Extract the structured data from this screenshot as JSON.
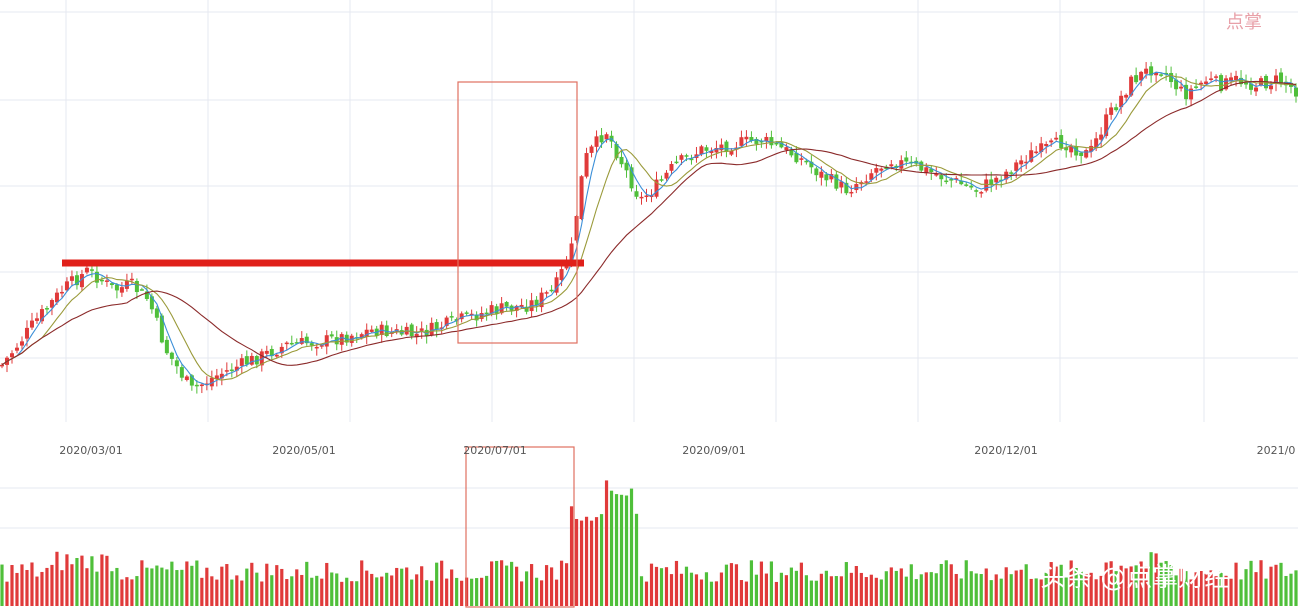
{
  "chart_data": {
    "type": "candlestick",
    "x_tick_labels": [
      "2020/03/01",
      "2020/05/01",
      "2020/07/01",
      "2020/09/01",
      "2020/12/01",
      "2021/0"
    ],
    "colors": {
      "up": "#e03a3a",
      "down": "#4fbf3a",
      "ma_short": "#3b8fd8",
      "ma_mid": "#9a9a3a",
      "ma_long": "#8b2a2a",
      "grid": "#e6e9f0",
      "highlight_line": "#e0201a",
      "highlight_box": "#e07060"
    },
    "moving_averages": [
      "ma_short",
      "ma_mid",
      "ma_long"
    ],
    "annotations": [
      {
        "kind": "horizontal-resistance-line",
        "color": "highlight_line"
      },
      {
        "kind": "highlight-box-price-breakout",
        "color": "highlight_box"
      },
      {
        "kind": "highlight-box-volume-spike",
        "color": "highlight_box"
      }
    ],
    "panels": [
      "price",
      "volume"
    ],
    "grid": true
  },
  "watermark": {
    "text": "头条 @点掌财经",
    "logo_text": "点掌"
  }
}
